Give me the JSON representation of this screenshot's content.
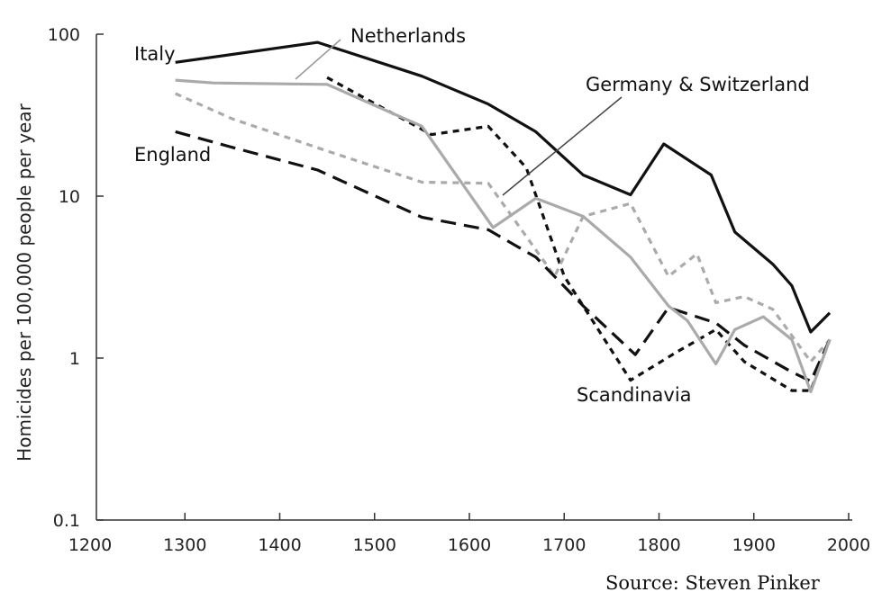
{
  "chart_data": {
    "type": "line",
    "ylabel": "Homicides per 100,000 people per year",
    "xlabel": "",
    "xlim": [
      1200,
      2000
    ],
    "ylim": [
      0.1,
      100
    ],
    "yscale": "log",
    "grid": false,
    "x_ticks": [
      1200,
      1300,
      1400,
      1500,
      1600,
      1700,
      1800,
      1900,
      2000
    ],
    "x_tick_labels": [
      "1200",
      "1300",
      "1400",
      "1500",
      "1600",
      "1700",
      "1800",
      "1900",
      "2000"
    ],
    "y_ticks": [
      0.1,
      1,
      10,
      100
    ],
    "y_tick_labels": [
      "0.1",
      "1",
      "10",
      "100"
    ],
    "series": [
      {
        "name": "Italy",
        "color": "#111111",
        "dash": "solid",
        "points": [
          [
            1290,
            67
          ],
          [
            1440,
            89
          ],
          [
            1550,
            55
          ],
          [
            1620,
            37
          ],
          [
            1670,
            25
          ],
          [
            1720,
            13.5
          ],
          [
            1770,
            10.2
          ],
          [
            1805,
            21
          ],
          [
            1855,
            13.5
          ],
          [
            1880,
            6
          ],
          [
            1920,
            3.8
          ],
          [
            1940,
            2.8
          ],
          [
            1960,
            1.45
          ],
          [
            1980,
            1.9
          ]
        ]
      },
      {
        "name": "Netherlands",
        "color": "#111111",
        "dash": "short",
        "points": [
          [
            1450,
            54
          ],
          [
            1560,
            24
          ],
          [
            1620,
            27
          ],
          [
            1660,
            15
          ],
          [
            1700,
            3.2
          ],
          [
            1770,
            0.73
          ],
          [
            1820,
            1.1
          ],
          [
            1860,
            1.5
          ],
          [
            1890,
            0.95
          ],
          [
            1940,
            0.63
          ],
          [
            1960,
            0.63
          ],
          [
            1980,
            1.3
          ]
        ]
      },
      {
        "name": "Germany & Switzerland",
        "color": "#aaaaaa",
        "dash": "short",
        "points": [
          [
            1290,
            43
          ],
          [
            1350,
            30
          ],
          [
            1450,
            19
          ],
          [
            1550,
            12.2
          ],
          [
            1620,
            12
          ],
          [
            1690,
            3.2
          ],
          [
            1720,
            7.5
          ],
          [
            1770,
            9
          ],
          [
            1810,
            3.2
          ],
          [
            1840,
            4.4
          ],
          [
            1860,
            2.2
          ],
          [
            1890,
            2.4
          ],
          [
            1920,
            2
          ],
          [
            1960,
            0.95
          ],
          [
            1980,
            1.3
          ]
        ]
      },
      {
        "name": "England",
        "color": "#111111",
        "dash": "long",
        "points": [
          [
            1290,
            25
          ],
          [
            1350,
            20
          ],
          [
            1440,
            14.5
          ],
          [
            1550,
            7.4
          ],
          [
            1620,
            6.2
          ],
          [
            1670,
            4.2
          ],
          [
            1720,
            2.1
          ],
          [
            1775,
            1.05
          ],
          [
            1810,
            2.05
          ],
          [
            1860,
            1.65
          ],
          [
            1890,
            1.2
          ],
          [
            1940,
            0.82
          ],
          [
            1960,
            0.72
          ],
          [
            1980,
            1.3
          ]
        ]
      },
      {
        "name": "Scandinavia",
        "color": "#aaaaaa",
        "dash": "solid",
        "points": [
          [
            1290,
            52
          ],
          [
            1330,
            50
          ],
          [
            1450,
            49
          ],
          [
            1550,
            27
          ],
          [
            1625,
            6.4
          ],
          [
            1670,
            9.7
          ],
          [
            1720,
            7.5
          ],
          [
            1770,
            4.2
          ],
          [
            1810,
            2.1
          ],
          [
            1830,
            1.7
          ],
          [
            1860,
            0.92
          ],
          [
            1880,
            1.5
          ],
          [
            1910,
            1.8
          ],
          [
            1940,
            1.3
          ],
          [
            1960,
            0.62
          ],
          [
            1980,
            1.3
          ]
        ]
      }
    ],
    "labels": [
      "Italy",
      "Netherlands",
      "Germany & Switzerland",
      "England",
      "Scandinavia"
    ]
  },
  "source": "Source: Steven Pinker"
}
